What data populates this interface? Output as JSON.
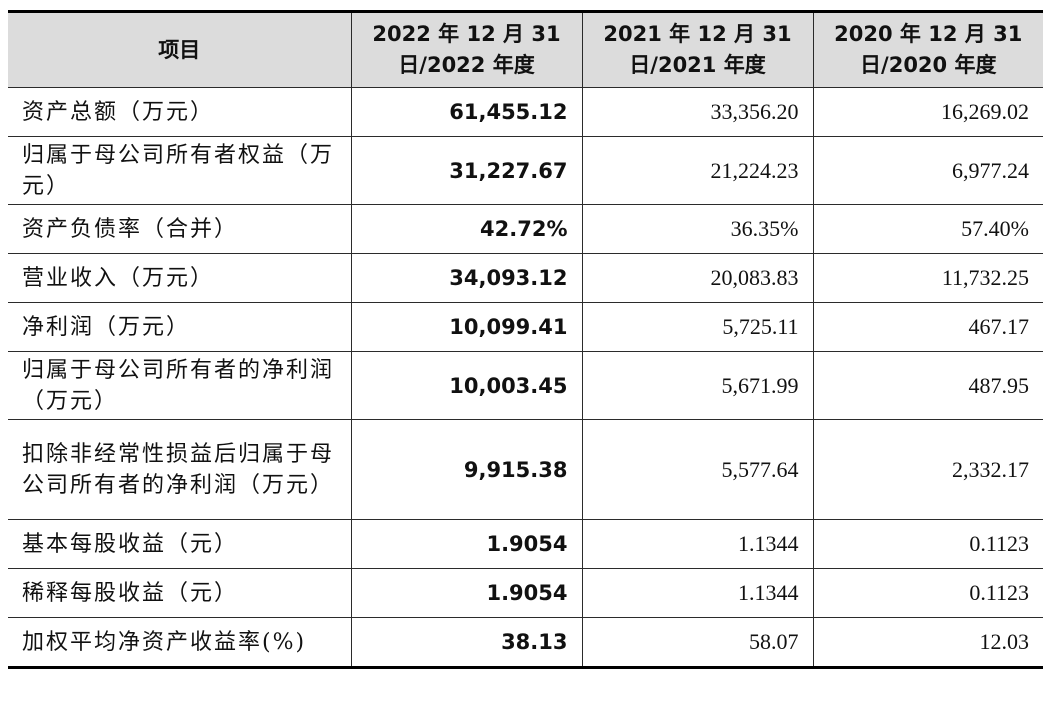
{
  "table": {
    "headers": [
      "项目",
      "2022 年 12 月 31 日/2022 年度",
      "2021 年 12 月 31 日/2021 年度",
      "2020 年 12 月 31 日/2020 年度"
    ],
    "rows": [
      {
        "label": "资产总额（万元）",
        "values": [
          "61,455.12",
          "33,356.20",
          "16,269.02"
        ]
      },
      {
        "label": "归属于母公司所有者权益（万元）",
        "values": [
          "31,227.67",
          "21,224.23",
          "6,977.24"
        ]
      },
      {
        "label": "资产负债率（合并）",
        "values": [
          "42.72%",
          "36.35%",
          "57.40%"
        ]
      },
      {
        "label": "营业收入（万元）",
        "values": [
          "34,093.12",
          "20,083.83",
          "11,732.25"
        ]
      },
      {
        "label": "净利润（万元）",
        "values": [
          "10,099.41",
          "5,725.11",
          "467.17"
        ]
      },
      {
        "label": "归属于母公司所有者的净利润（万元）",
        "values": [
          "10,003.45",
          "5,671.99",
          "487.95"
        ]
      },
      {
        "label": "扣除非经常性损益后归属于母公司所有者的净利润（万元）",
        "values": [
          "9,915.38",
          "5,577.64",
          "2,332.17"
        ]
      },
      {
        "label": "基本每股收益（元）",
        "values": [
          "1.9054",
          "1.1344",
          "0.1123"
        ]
      },
      {
        "label": "稀释每股收益（元）",
        "values": [
          "1.9054",
          "1.1344",
          "0.1123"
        ]
      },
      {
        "label": "加权平均净资产收益率(%)",
        "values": [
          "38.13",
          "58.07",
          "12.03"
        ]
      }
    ]
  }
}
